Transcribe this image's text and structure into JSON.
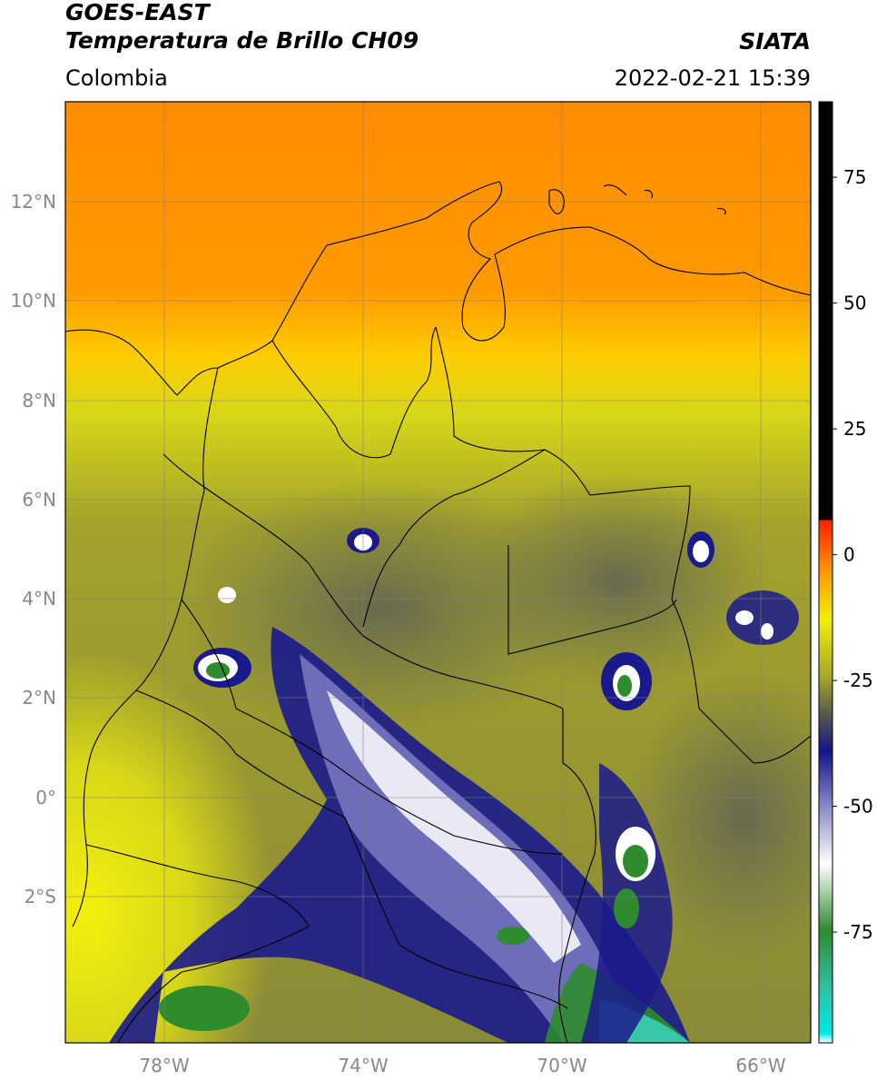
{
  "header": {
    "title_line1": "GOES-EAST",
    "title_line2": "Temperatura de Brillo CH09",
    "region": "Colombia",
    "source": "SIATA",
    "datetime": "2022-02-21 15:39"
  },
  "map": {
    "lon_range": [
      -80,
      -65
    ],
    "lat_range": [
      -5.2,
      14
    ],
    "lat_ticks": [
      "12°N",
      "10°N",
      "8°N",
      "6°N",
      "4°N",
      "2°N",
      "0°",
      "2°S"
    ],
    "lon_ticks": [
      "78°W",
      "74°W",
      "70°W",
      "66°W"
    ],
    "grid": true,
    "colors": {
      "warm_north": "#ff8c00",
      "warm_mid": "#ffcc00",
      "yellow": "#e8e810",
      "olive": "#9a9a28",
      "grey": "#6e6e50",
      "navy": "#1a1a8c",
      "white": "#ffffff",
      "green": "#2e8b2e",
      "teal": "#38c8a8"
    }
  },
  "colorbar": {
    "labels": [
      "75",
      "50",
      "25",
      "0",
      "-25",
      "-50",
      "-75"
    ],
    "range": [
      -97,
      90
    ]
  }
}
